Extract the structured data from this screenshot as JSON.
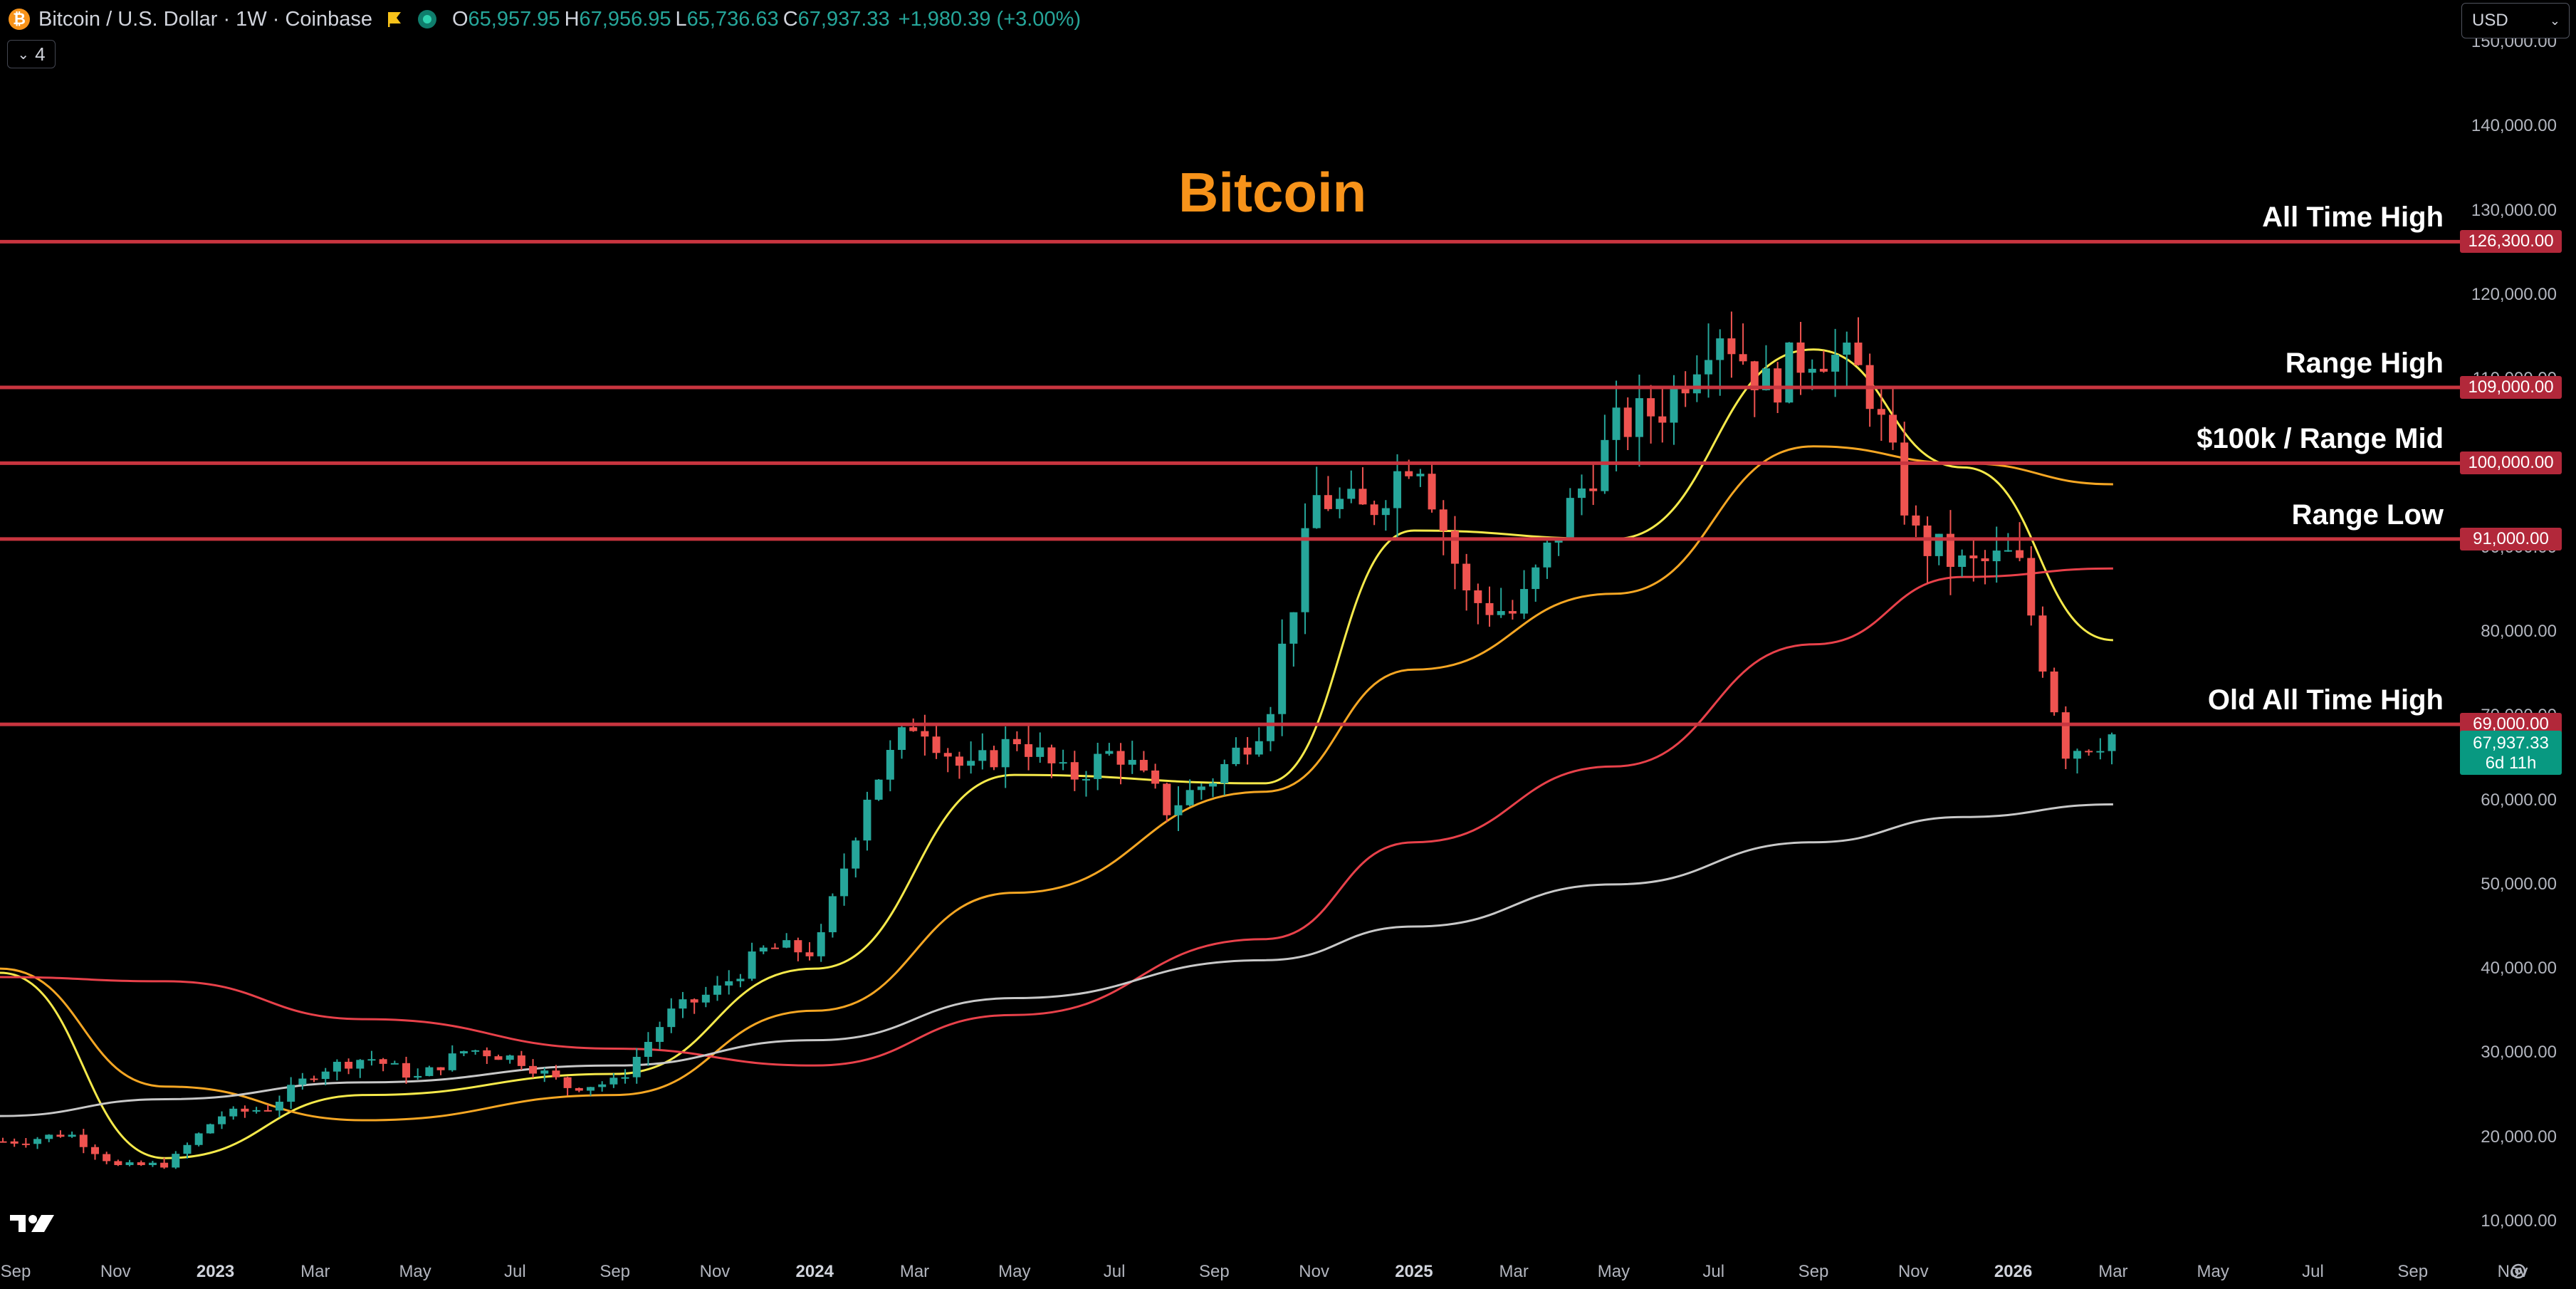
{
  "header": {
    "symbol": "Bitcoin / U.S. Dollar · 1W · Coinbase",
    "icon": "bitcoin-icon",
    "open_key": "O",
    "open": "65,957.95",
    "high_key": "H",
    "high": "67,956.95",
    "low_key": "L",
    "low": "65,736.63",
    "close_key": "C",
    "close": "67,937.33",
    "change": "+1,980.39 (+3.00%)"
  },
  "indicator_toggle": {
    "count": "4"
  },
  "currency_select": {
    "value": "USD"
  },
  "title": "Bitcoin",
  "levels": [
    {
      "label": "All Time High",
      "price": 126300,
      "tag": "126,300.00"
    },
    {
      "label": "Range High",
      "price": 109000,
      "tag": "109,000.00"
    },
    {
      "label": "$100k / Range Mid",
      "price": 100000,
      "tag": "100,000.00"
    },
    {
      "label": "Range Low",
      "price": 91000,
      "tag": "91,000.00"
    },
    {
      "label": "Old All Time High",
      "price": 69000,
      "tag": "69,000.00"
    }
  ],
  "current_price": {
    "price": "67,937.33",
    "countdown": "6d 11h"
  },
  "y_axis_ticks": [
    "150,000.00",
    "140,000.00",
    "130,000.00",
    "120,000.00",
    "110,000.00",
    "100,000.00",
    "90,000.00",
    "80,000.00",
    "70,000.00",
    "60,000.00",
    "50,000.00",
    "40,000.00",
    "30,000.00",
    "20,000.00",
    "10,000.00"
  ],
  "x_axis_ticks": [
    {
      "label": "Sep",
      "year": false
    },
    {
      "label": "Nov",
      "year": false
    },
    {
      "label": "2023",
      "year": true
    },
    {
      "label": "Mar",
      "year": false
    },
    {
      "label": "May",
      "year": false
    },
    {
      "label": "Jul",
      "year": false
    },
    {
      "label": "Sep",
      "year": false
    },
    {
      "label": "Nov",
      "year": false
    },
    {
      "label": "2024",
      "year": true
    },
    {
      "label": "Mar",
      "year": false
    },
    {
      "label": "May",
      "year": false
    },
    {
      "label": "Jul",
      "year": false
    },
    {
      "label": "Sep",
      "year": false
    },
    {
      "label": "Nov",
      "year": false
    },
    {
      "label": "2025",
      "year": true
    },
    {
      "label": "Mar",
      "year": false
    },
    {
      "label": "May",
      "year": false
    },
    {
      "label": "Jul",
      "year": false
    },
    {
      "label": "Sep",
      "year": false
    },
    {
      "label": "Nov",
      "year": false
    },
    {
      "label": "2026",
      "year": true
    },
    {
      "label": "Mar",
      "year": false
    },
    {
      "label": "May",
      "year": false
    },
    {
      "label": "Jul",
      "year": false
    },
    {
      "label": "Sep",
      "year": false
    },
    {
      "label": "Nov",
      "year": false
    }
  ],
  "colors": {
    "up": "#26a69a",
    "down": "#ef5350",
    "level_line": "#c8353f",
    "ma_fast": "#f5e94a",
    "ma_mid": "#f5a623",
    "ma_slow": "#e8414a",
    "ma_long": "#c8c8c8",
    "title": "#f7931a"
  },
  "chart_data": {
    "type": "candlestick",
    "interval": "1W",
    "y_range": [
      10000,
      150000
    ],
    "x_range": [
      "2022-09",
      "2026-11"
    ],
    "grid": false,
    "ohlc_path": [
      {
        "date": "2022-09",
        "price": 19500
      },
      {
        "date": "2022-10",
        "price": 20500
      },
      {
        "date": "2022-11",
        "price": 16500
      },
      {
        "date": "2022-12",
        "price": 16800
      },
      {
        "date": "2023-01",
        "price": 22500
      },
      {
        "date": "2023-02",
        "price": 23500
      },
      {
        "date": "2023-03",
        "price": 28000
      },
      {
        "date": "2023-04",
        "price": 29500
      },
      {
        "date": "2023-05",
        "price": 27000
      },
      {
        "date": "2023-06",
        "price": 30500
      },
      {
        "date": "2023-07",
        "price": 29300
      },
      {
        "date": "2023-08",
        "price": 26000
      },
      {
        "date": "2023-09",
        "price": 26500
      },
      {
        "date": "2023-10",
        "price": 34500
      },
      {
        "date": "2023-11",
        "price": 37500
      },
      {
        "date": "2023-12",
        "price": 42500
      },
      {
        "date": "2024-01",
        "price": 42000
      },
      {
        "date": "2024-02",
        "price": 61000
      },
      {
        "date": "2024-03",
        "price": 70000
      },
      {
        "date": "2024-04",
        "price": 63000
      },
      {
        "date": "2024-05",
        "price": 67500
      },
      {
        "date": "2024-06",
        "price": 62500
      },
      {
        "date": "2024-07",
        "price": 66000
      },
      {
        "date": "2024-08",
        "price": 59000
      },
      {
        "date": "2024-09",
        "price": 63000
      },
      {
        "date": "2024-10",
        "price": 70000
      },
      {
        "date": "2024-11",
        "price": 96000
      },
      {
        "date": "2024-12",
        "price": 94000
      },
      {
        "date": "2025-01",
        "price": 102000
      },
      {
        "date": "2025-02",
        "price": 84000
      },
      {
        "date": "2025-03",
        "price": 82000
      },
      {
        "date": "2025-04",
        "price": 94000
      },
      {
        "date": "2025-05",
        "price": 104000
      },
      {
        "date": "2025-06",
        "price": 107000
      },
      {
        "date": "2025-07",
        "price": 117000
      },
      {
        "date": "2025-08",
        "price": 109000
      },
      {
        "date": "2025-09",
        "price": 114000
      },
      {
        "date": "2025-10",
        "price": 110000
      },
      {
        "date": "2025-11",
        "price": 91000
      },
      {
        "date": "2025-12",
        "price": 87500
      },
      {
        "date": "2026-01",
        "price": 89000
      },
      {
        "date": "2026-02",
        "price": 66000
      },
      {
        "date": "2026-03",
        "price": 67937
      }
    ],
    "moving_averages": [
      {
        "color": "#f5e94a",
        "points": [
          [
            "2022-09",
            39500
          ],
          [
            "2022-12",
            17500
          ],
          [
            "2023-04",
            25000
          ],
          [
            "2023-09",
            27500
          ],
          [
            "2024-01",
            40000
          ],
          [
            "2024-05",
            63000
          ],
          [
            "2024-10",
            62000
          ],
          [
            "2025-01",
            92000
          ],
          [
            "2025-05",
            91000
          ],
          [
            "2025-09",
            113500
          ],
          [
            "2025-12",
            99500
          ],
          [
            "2026-03",
            79000
          ]
        ]
      },
      {
        "color": "#f5a623",
        "points": [
          [
            "2022-09",
            40000
          ],
          [
            "2022-12",
            26000
          ],
          [
            "2023-04",
            22000
          ],
          [
            "2023-09",
            25000
          ],
          [
            "2024-01",
            35000
          ],
          [
            "2024-05",
            49000
          ],
          [
            "2024-10",
            61000
          ],
          [
            "2025-01",
            75500
          ],
          [
            "2025-05",
            84500
          ],
          [
            "2025-09",
            102000
          ],
          [
            "2025-12",
            100000
          ],
          [
            "2026-03",
            97500
          ]
        ]
      },
      {
        "color": "#e8414a",
        "points": [
          [
            "2022-09",
            39000
          ],
          [
            "2022-12",
            38500
          ],
          [
            "2023-04",
            34000
          ],
          [
            "2023-09",
            30500
          ],
          [
            "2024-01",
            28500
          ],
          [
            "2024-05",
            34500
          ],
          [
            "2024-10",
            43500
          ],
          [
            "2025-01",
            55000
          ],
          [
            "2025-05",
            64000
          ],
          [
            "2025-09",
            78500
          ],
          [
            "2025-12",
            86500
          ],
          [
            "2026-03",
            87500
          ]
        ]
      },
      {
        "color": "#c8c8c8",
        "points": [
          [
            "2022-09",
            22500
          ],
          [
            "2022-12",
            24500
          ],
          [
            "2023-04",
            26500
          ],
          [
            "2023-09",
            28500
          ],
          [
            "2024-01",
            31500
          ],
          [
            "2024-05",
            36500
          ],
          [
            "2024-10",
            41000
          ],
          [
            "2025-01",
            45000
          ],
          [
            "2025-05",
            50000
          ],
          [
            "2025-09",
            55000
          ],
          [
            "2025-12",
            58000
          ],
          [
            "2026-03",
            59500
          ]
        ]
      }
    ]
  }
}
